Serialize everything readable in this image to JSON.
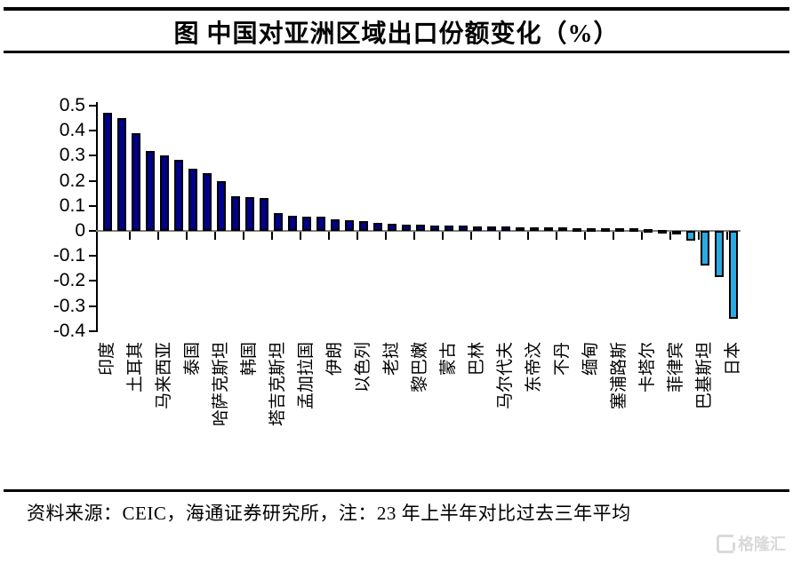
{
  "title": "图 中国对亚洲区域出口份额变化（%）",
  "footer": {
    "source_note": "资料来源：CEIC，海通证券研究所，注：23 年上半年对比过去三年平均"
  },
  "logo": {
    "text": "格隆汇",
    "icon": "grandlogo-icon",
    "color": "#d9d9d9"
  },
  "chart_data": {
    "type": "bar",
    "title": "图 中国对亚洲区域出口份额变化（%）",
    "xlabel": "",
    "ylabel": "",
    "ylim": [
      -0.4,
      0.5
    ],
    "ytick_step": 0.1,
    "ytick_labels": [
      "0.5",
      "0.4",
      "0.3",
      "0.2",
      "0.1",
      "0",
      "-0.1",
      "-0.2",
      "-0.3",
      "-0.4"
    ],
    "grid": false,
    "legend": "none",
    "category_label_interval": 2,
    "colors": {
      "positive_fill": "#00008b",
      "negative_fill": "#29abe2",
      "bar_border": "#000000",
      "zero_line": "#808080",
      "axis": "#000000"
    },
    "categories": [
      "印度",
      "",
      "土耳其",
      "",
      "马来西亚",
      "",
      "泰国",
      "",
      "哈萨克斯坦",
      "",
      "韩国",
      "",
      "塔吉克斯坦",
      "",
      "孟加拉国",
      "",
      "伊朗",
      "",
      "以色列",
      "",
      "老挝",
      "",
      "黎巴嫩",
      "",
      "蒙古",
      "",
      "巴林",
      "",
      "马尔代夫",
      "",
      "东帝汶",
      "",
      "不丹",
      "",
      "缅甸",
      "",
      "塞浦路斯",
      "",
      "卡塔尔",
      "",
      "菲律宾",
      "",
      "巴基斯坦",
      "",
      "日本"
    ],
    "values": [
      0.47,
      0.45,
      0.39,
      0.32,
      0.3,
      0.285,
      0.25,
      0.23,
      0.2,
      0.14,
      0.135,
      0.13,
      0.07,
      0.06,
      0.058,
      0.055,
      0.046,
      0.042,
      0.04,
      0.032,
      0.027,
      0.025,
      0.024,
      0.022,
      0.021,
      0.02,
      0.018,
      0.017,
      0.016,
      0.015,
      0.014,
      0.013,
      0.013,
      0.012,
      0.011,
      0.011,
      0.01,
      0.009,
      0.008,
      0.005,
      -0.01,
      -0.04,
      -0.14,
      -0.185,
      -0.35
    ]
  }
}
